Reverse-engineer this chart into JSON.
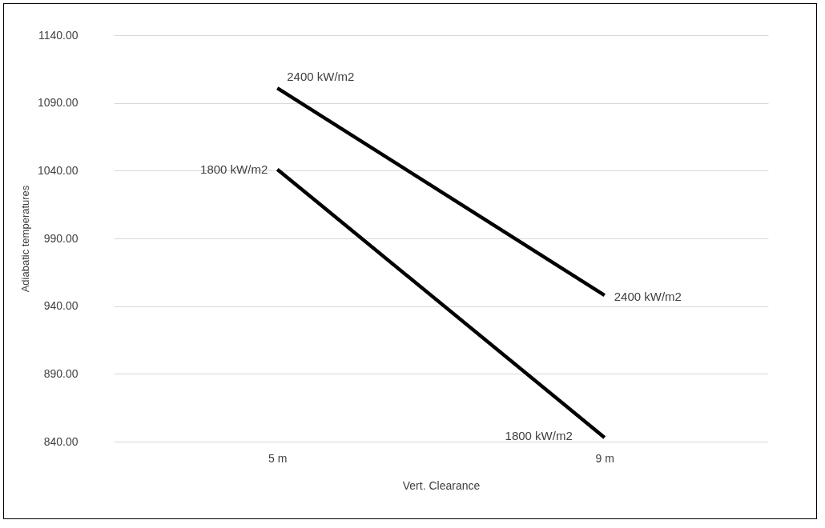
{
  "chart_data": {
    "type": "line",
    "xlabel": "Vert. Clearance",
    "ylabel": "Adiabatic temperatures",
    "categories": [
      "5 m",
      "9 m"
    ],
    "series": [
      {
        "name": "2400 kW/m2",
        "color": "#000000",
        "values": [
          1101,
          948
        ]
      },
      {
        "name": "1800 kW/m2",
        "color": "#000000",
        "values": [
          1041,
          843
        ]
      }
    ],
    "ylim": [
      840,
      1140
    ],
    "yticks": [
      {
        "value": 840,
        "label": "840.00"
      },
      {
        "value": 890,
        "label": "890.00"
      },
      {
        "value": 940,
        "label": "940.00"
      },
      {
        "value": 990,
        "label": "990.00"
      },
      {
        "value": 1040,
        "label": "1040.00"
      },
      {
        "value": 1090,
        "label": "1090.00"
      },
      {
        "value": 1140,
        "label": "1140.00"
      }
    ],
    "grid": "y",
    "marker": "none",
    "line_style": "solid"
  }
}
